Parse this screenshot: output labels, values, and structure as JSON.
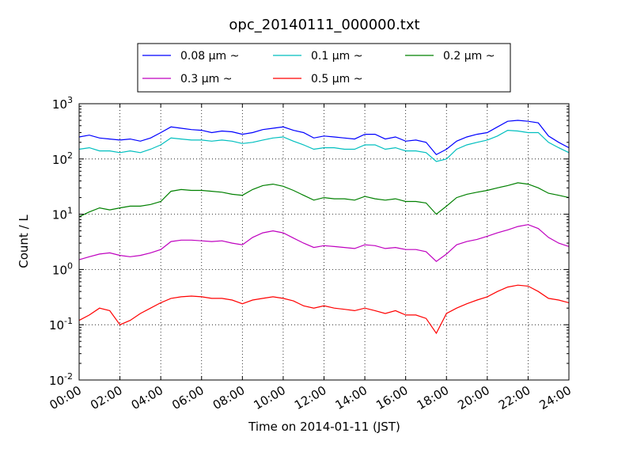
{
  "chart_data": {
    "type": "line",
    "title": "opc_20140111_000000.txt",
    "xlabel": "Time on 2014-01-11 (JST)",
    "ylabel": "Count / L",
    "yscale": "log",
    "xlim": [
      "00:00",
      "24:00"
    ],
    "ylim": [
      0.01,
      1000
    ],
    "grid": true,
    "legend_position": "top-center",
    "x_ticks": [
      "00:00",
      "02:00",
      "04:00",
      "06:00",
      "08:00",
      "10:00",
      "12:00",
      "14:00",
      "16:00",
      "18:00",
      "20:00",
      "22:00",
      "24:00"
    ],
    "y_ticks": [
      {
        "value": 0.01,
        "base": "10",
        "exp": "-2"
      },
      {
        "value": 0.1,
        "base": "10",
        "exp": "-1"
      },
      {
        "value": 1,
        "base": "10",
        "exp": "0"
      },
      {
        "value": 10,
        "base": "10",
        "exp": "1"
      },
      {
        "value": 100,
        "base": "10",
        "exp": "2"
      },
      {
        "value": 1000,
        "base": "10",
        "exp": "3"
      }
    ],
    "x": [
      "00:00",
      "00:30",
      "01:00",
      "01:30",
      "02:00",
      "02:30",
      "03:00",
      "03:30",
      "04:00",
      "04:30",
      "05:00",
      "05:30",
      "06:00",
      "06:30",
      "07:00",
      "07:30",
      "08:00",
      "08:30",
      "09:00",
      "09:30",
      "10:00",
      "10:30",
      "11:00",
      "11:30",
      "12:00",
      "12:30",
      "13:00",
      "13:30",
      "14:00",
      "14:30",
      "15:00",
      "15:30",
      "16:00",
      "16:30",
      "17:00",
      "17:30",
      "18:00",
      "18:30",
      "19:00",
      "19:30",
      "20:00",
      "20:30",
      "21:00",
      "21:30",
      "22:00",
      "22:30",
      "23:00",
      "23:30",
      "24:00"
    ],
    "series": [
      {
        "name": "0.08 μm ~",
        "color": "#0000ff",
        "values": [
          250,
          270,
          240,
          230,
          220,
          230,
          210,
          240,
          300,
          380,
          360,
          340,
          330,
          300,
          320,
          310,
          280,
          300,
          340,
          360,
          380,
          330,
          300,
          240,
          260,
          250,
          240,
          230,
          280,
          280,
          230,
          250,
          210,
          220,
          200,
          120,
          150,
          210,
          250,
          280,
          300,
          380,
          480,
          500,
          480,
          450,
          260,
          200,
          160
        ]
      },
      {
        "name": "0.1 μm ~",
        "color": "#00bfbf",
        "values": [
          150,
          160,
          140,
          140,
          130,
          140,
          130,
          150,
          180,
          240,
          230,
          220,
          220,
          210,
          220,
          210,
          190,
          200,
          220,
          240,
          250,
          210,
          180,
          150,
          160,
          160,
          150,
          150,
          180,
          180,
          150,
          160,
          140,
          140,
          130,
          90,
          100,
          150,
          180,
          200,
          220,
          260,
          330,
          320,
          300,
          300,
          200,
          160,
          130
        ]
      },
      {
        "name": "0.2 μm ~",
        "color": "#008000",
        "values": [
          9,
          11,
          13,
          12,
          13,
          14,
          14,
          15,
          17,
          26,
          28,
          27,
          27,
          26,
          25,
          23,
          22,
          28,
          33,
          35,
          32,
          27,
          22,
          18,
          20,
          19,
          19,
          18,
          21,
          19,
          18,
          19,
          17,
          17,
          16,
          10,
          14,
          20,
          23,
          25,
          27,
          30,
          33,
          37,
          35,
          30,
          24,
          22,
          20
        ]
      },
      {
        "name": "0.3 μm ~",
        "color": "#bf00bf",
        "values": [
          1.5,
          1.7,
          1.9,
          2.0,
          1.8,
          1.7,
          1.8,
          2.0,
          2.3,
          3.2,
          3.4,
          3.4,
          3.3,
          3.2,
          3.3,
          3.0,
          2.8,
          3.8,
          4.6,
          5.0,
          4.6,
          3.7,
          3.0,
          2.5,
          2.7,
          2.6,
          2.5,
          2.4,
          2.8,
          2.7,
          2.4,
          2.5,
          2.3,
          2.3,
          2.1,
          1.4,
          1.9,
          2.8,
          3.2,
          3.5,
          4.0,
          4.6,
          5.2,
          6.0,
          6.5,
          5.5,
          3.8,
          3.0,
          2.6
        ]
      },
      {
        "name": "0.5 μm ~",
        "color": "#ff0000",
        "values": [
          0.12,
          0.15,
          0.2,
          0.18,
          0.1,
          0.12,
          0.16,
          0.2,
          0.25,
          0.3,
          0.32,
          0.33,
          0.32,
          0.3,
          0.3,
          0.28,
          0.24,
          0.28,
          0.3,
          0.32,
          0.3,
          0.27,
          0.22,
          0.2,
          0.22,
          0.2,
          0.19,
          0.18,
          0.2,
          0.18,
          0.16,
          0.18,
          0.15,
          0.15,
          0.13,
          0.07,
          0.16,
          0.2,
          0.24,
          0.28,
          0.32,
          0.4,
          0.48,
          0.52,
          0.5,
          0.4,
          0.3,
          0.28,
          0.25
        ]
      }
    ]
  }
}
